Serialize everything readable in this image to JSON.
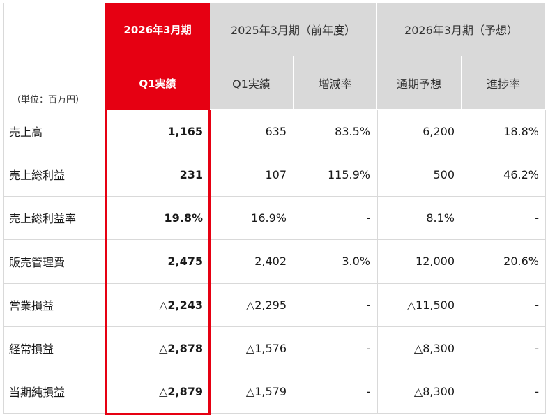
{
  "header": {
    "unit_label": "（単位：百万円）",
    "current_period": "2026年3月期",
    "current_sub": "Q1実績",
    "prior_period": "2025年3月期（前年度）",
    "prior_sub1": "Q1実績",
    "prior_sub2": "増減率",
    "forecast_period": "2026年3月期（予想）",
    "forecast_sub1": "通期予想",
    "forecast_sub2": "進捗率"
  },
  "rows": [
    {
      "label": "売上高",
      "q1": "1,165",
      "prior_q1": "635",
      "change": "83.5%",
      "forecast": "6,200",
      "progress": "18.8%"
    },
    {
      "label": "売上総利益",
      "q1": "231",
      "prior_q1": "107",
      "change": "115.9%",
      "forecast": "500",
      "progress": "46.2%"
    },
    {
      "label": "売上総利益率",
      "q1": "19.8%",
      "prior_q1": "16.9%",
      "change": "-",
      "forecast": "8.1%",
      "progress": "-"
    },
    {
      "label": "販売管理費",
      "q1": "2,475",
      "prior_q1": "2,402",
      "change": "3.0%",
      "forecast": "12,000",
      "progress": "20.6%"
    },
    {
      "label": "営業損益",
      "q1": "△2,243",
      "prior_q1": "△2,295",
      "change": "-",
      "forecast": "△11,500",
      "progress": "-"
    },
    {
      "label": "経常損益",
      "q1": "△2,878",
      "prior_q1": "△1,576",
      "change": "-",
      "forecast": "△8,300",
      "progress": "-"
    },
    {
      "label": "当期純損益",
      "q1": "△2,879",
      "prior_q1": "△1,579",
      "change": "-",
      "forecast": "△8,300",
      "progress": "-"
    }
  ],
  "colors": {
    "accent": "#e60012",
    "header_gray": "#d9d9d9"
  }
}
